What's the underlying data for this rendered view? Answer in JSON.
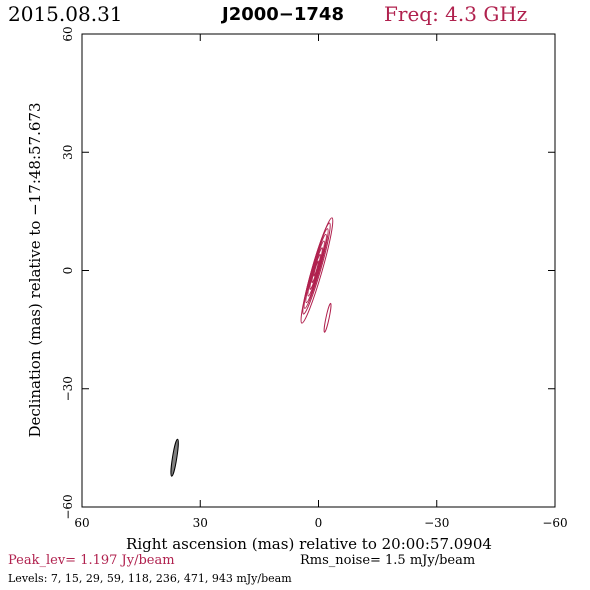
{
  "header": {
    "date": "2015.08.31",
    "source": "J2000−1748",
    "freq": "Freq: 4.3 GHz"
  },
  "footer": {
    "peak": "Peak_lev=  1.197 Jy/beam",
    "rms": "Rms_noise=  1.5 mJy/beam",
    "levels": "Levels:   7,  15,  29,  59, 118, 236, 471, 943 mJy/beam"
  },
  "colors": {
    "contour": "#b0214e",
    "beam": "#808080",
    "frame": "#000000"
  },
  "chart_data": {
    "type": "contour",
    "xlabel": "Right ascension (mas) relative to 20:00:57.0904",
    "ylabel": "Declination (mas) relative to −17:48:57.673",
    "xlim": [
      60,
      -60
    ],
    "ylim": [
      -60,
      60
    ],
    "xticks": [
      60,
      30,
      0,
      -30,
      -60
    ],
    "yticks": [
      60,
      30,
      0,
      -30,
      -60
    ],
    "xtick_labels": [
      "60",
      "30",
      "0",
      "−30",
      "−60"
    ],
    "ytick_labels": [
      "60",
      "30",
      "0",
      "−30",
      "−60"
    ],
    "contour_levels_mJy": [
      7,
      15,
      29,
      59,
      118,
      236,
      471,
      943
    ],
    "contours": [
      {
        "level": 7,
        "x": 0.4,
        "y": 0.0,
        "major_mas": 27.8,
        "minor_mas": 2.6,
        "pa_deg": 16
      },
      {
        "level": 15,
        "x": 0.5,
        "y": 0.5,
        "major_mas": 24.0,
        "minor_mas": 2.2,
        "pa_deg": 16
      },
      {
        "level": 29,
        "x": 0.6,
        "y": 0.5,
        "major_mas": 21.0,
        "minor_mas": 1.9,
        "pa_deg": 16
      },
      {
        "level": 59,
        "x": 0.6,
        "y": 0.5,
        "major_mas": 18.0,
        "minor_mas": 1.6,
        "pa_deg": 16
      },
      {
        "level": 118,
        "x": 0.6,
        "y": 0.5,
        "major_mas": 14.5,
        "minor_mas": 1.3,
        "pa_deg": 16
      },
      {
        "level": 236,
        "x": 0.6,
        "y": 0.5,
        "major_mas": 11.0,
        "minor_mas": 1.0,
        "pa_deg": 16
      },
      {
        "level": 471,
        "x": 0.6,
        "y": 0.5,
        "major_mas": 7.5,
        "minor_mas": 0.7,
        "pa_deg": 16
      },
      {
        "level": 943,
        "x": 0.6,
        "y": 0.5,
        "major_mas": 4.0,
        "minor_mas": 0.4,
        "pa_deg": 16
      },
      {
        "level": 7,
        "x": -2.3,
        "y": -12.0,
        "major_mas": 7.5,
        "minor_mas": 0.8,
        "pa_deg": 12
      }
    ],
    "beam": {
      "x": 36.5,
      "y": -47.5,
      "major_mas": 9.5,
      "minor_mas": 1.1,
      "pa_deg": 9
    }
  }
}
